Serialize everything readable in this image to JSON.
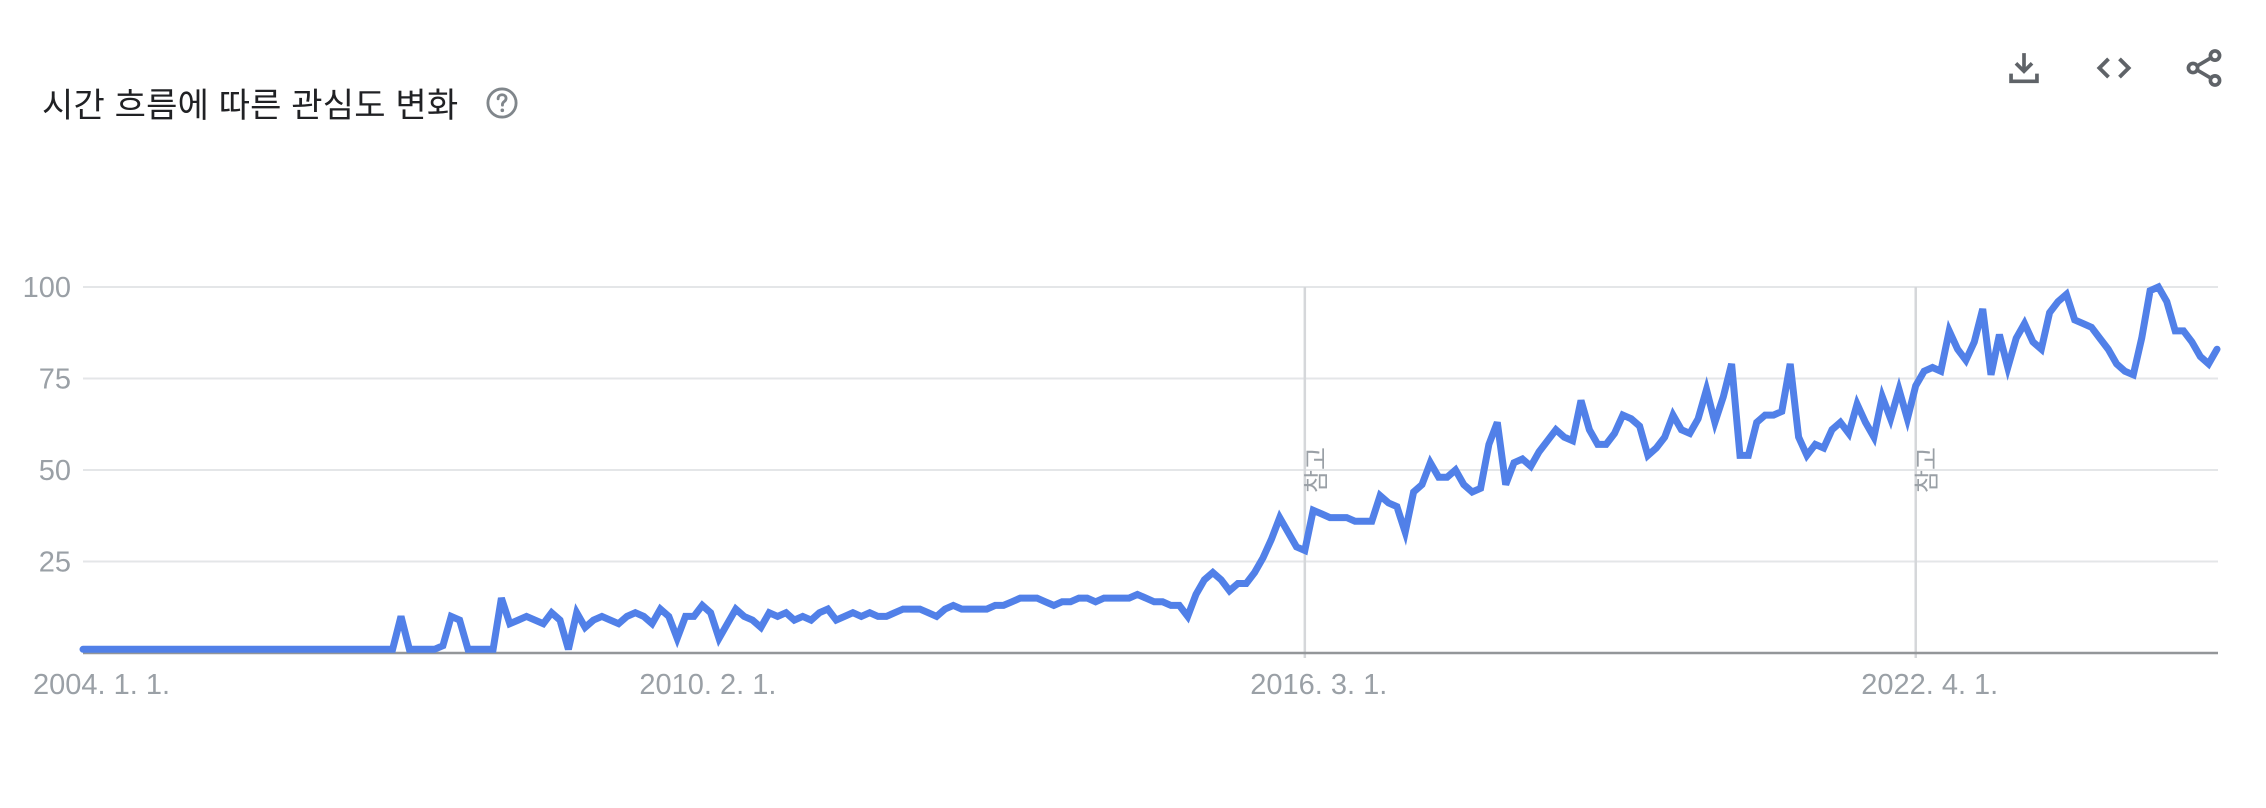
{
  "header": {
    "title": "시간 흐름에 따른 관심도 변화",
    "help_icon": "help-circle-icon",
    "actions": [
      {
        "id": "download",
        "icon": "download-icon"
      },
      {
        "id": "embed",
        "icon": "embed-code-icon"
      },
      {
        "id": "share",
        "icon": "share-icon"
      }
    ]
  },
  "colors": {
    "line": "#5180e8",
    "grid": "#e4e6e8",
    "axis": "#939699",
    "note_line": "#d5d7da",
    "labels": "#9aa0a6",
    "title": "#202124",
    "icons": "#5f6368"
  },
  "chart_data": {
    "type": "line",
    "title": "시간 흐름에 따른 관심도 변화",
    "x_unit": "month",
    "x_start": "2004-01",
    "x_end": "2025-04",
    "ylim": [
      0,
      100
    ],
    "yticks": [
      25,
      50,
      75,
      100
    ],
    "grid": "horizontal",
    "legend": "none",
    "xticks": [
      {
        "label": "2004. 1. 1.",
        "month_index": 0
      },
      {
        "label": "2010. 2. 1.",
        "month_index": 73
      },
      {
        "label": "2016. 3. 1.",
        "month_index": 146
      },
      {
        "label": "2022. 4. 1.",
        "month_index": 219
      }
    ],
    "annotations": [
      {
        "label": "참고",
        "month_index": 146
      },
      {
        "label": "참고",
        "month_index": 219
      }
    ],
    "values": [
      1,
      1,
      1,
      1,
      1,
      1,
      1,
      1,
      1,
      1,
      1,
      1,
      1,
      1,
      1,
      1,
      1,
      1,
      1,
      1,
      1,
      1,
      1,
      1,
      1,
      1,
      1,
      1,
      1,
      1,
      1,
      1,
      1,
      1,
      1,
      1,
      1,
      1,
      10,
      1,
      1,
      1,
      1,
      2,
      10,
      9,
      1,
      1,
      1,
      1,
      15,
      8,
      9,
      10,
      9,
      8,
      11,
      9,
      1,
      11,
      7,
      9,
      10,
      9,
      8,
      10,
      11,
      10,
      8,
      12,
      10,
      4,
      10,
      10,
      13,
      11,
      4,
      8,
      12,
      10,
      9,
      7,
      11,
      10,
      11,
      9,
      10,
      9,
      11,
      12,
      9,
      10,
      11,
      10,
      11,
      10,
      10,
      11,
      12,
      12,
      12,
      11,
      10,
      12,
      13,
      12,
      12,
      12,
      12,
      13,
      13,
      14,
      15,
      15,
      15,
      14,
      13,
      14,
      14,
      15,
      15,
      14,
      15,
      15,
      15,
      15,
      16,
      15,
      14,
      14,
      13,
      13,
      10,
      16,
      20,
      22,
      20,
      17,
      19,
      19,
      22,
      26,
      31,
      37,
      33,
      29,
      28,
      39,
      38,
      37,
      37,
      37,
      36,
      36,
      36,
      43,
      41,
      40,
      33,
      44,
      46,
      52,
      48,
      48,
      50,
      46,
      44,
      45,
      57,
      63,
      46,
      52,
      53,
      51,
      55,
      58,
      61,
      59,
      58,
      69,
      61,
      57,
      57,
      60,
      65,
      64,
      62,
      54,
      56,
      59,
      65,
      61,
      60,
      64,
      72,
      63,
      70,
      79,
      54,
      54,
      63,
      65,
      65,
      66,
      79,
      59,
      54,
      57,
      56,
      61,
      63,
      60,
      68,
      63,
      59,
      70,
      64,
      72,
      64,
      73,
      77,
      78,
      77,
      88,
      83,
      80,
      85,
      94,
      76,
      87,
      78,
      86,
      90,
      85,
      83,
      93,
      96,
      98,
      91,
      90,
      89,
      86,
      83,
      79,
      77,
      76,
      86,
      99,
      100,
      96,
      88,
      88,
      85,
      81,
      79,
      83
    ]
  }
}
